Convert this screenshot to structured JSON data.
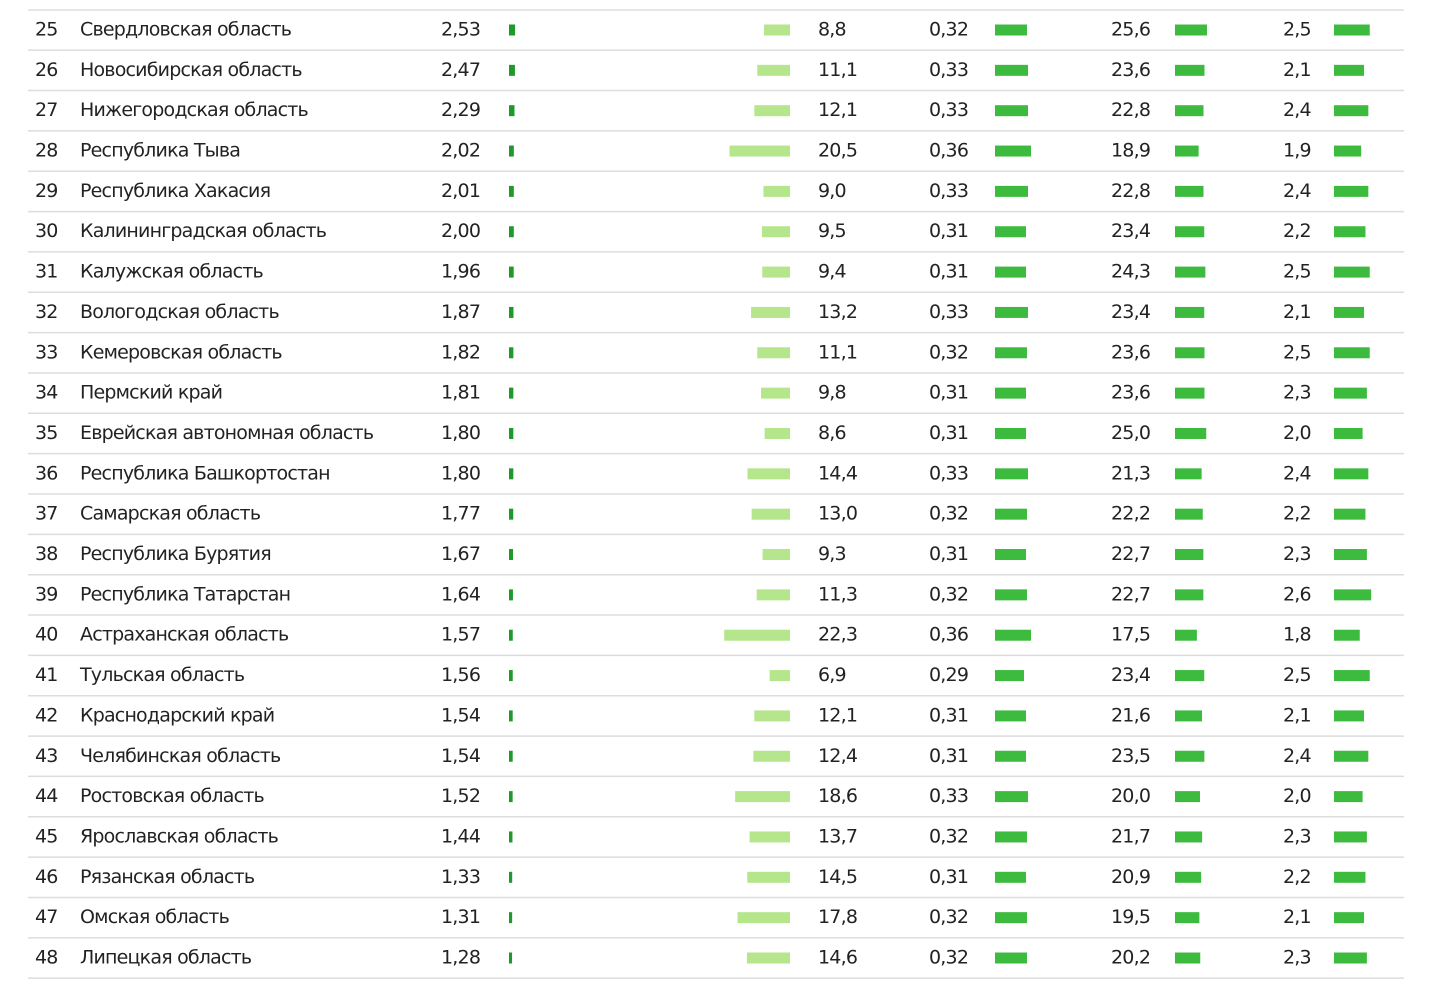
{
  "table": {
    "rows": [
      [
        "25",
        "Свердловская область",
        "2,53",
        "8,8",
        "0,32",
        "25,6",
        "2,5"
      ],
      [
        "26",
        "Новосибирская область",
        "2,47",
        "11,1",
        "0,33",
        "23,6",
        "2,1"
      ],
      [
        "27",
        "Нижегородская область",
        "2,29",
        "12,1",
        "0,33",
        "22,8",
        "2,4"
      ],
      [
        "28",
        "Республика Тыва",
        "2,02",
        "20,5",
        "0,36",
        "18,9",
        "1,9"
      ],
      [
        "29",
        "Республика Хакасия",
        "2,01",
        "9,0",
        "0,33",
        "22,8",
        "2,4"
      ],
      [
        "30",
        "Калининградская область",
        "2,00",
        "9,5",
        "0,31",
        "23,4",
        "2,2"
      ],
      [
        "31",
        "Калужская область",
        "1,96",
        "9,4",
        "0,31",
        "24,3",
        "2,5"
      ],
      [
        "32",
        "Вологодская область",
        "1,87",
        "13,2",
        "0,33",
        "23,4",
        "2,1"
      ],
      [
        "33",
        "Кемеровская область",
        "1,82",
        "11,1",
        "0,32",
        "23,6",
        "2,5"
      ],
      [
        "34",
        "Пермский край",
        "1,81",
        "9,8",
        "0,31",
        "23,6",
        "2,3"
      ],
      [
        "35",
        "Еврейская автономная область",
        "1,80",
        "8,6",
        "0,31",
        "25,0",
        "2,0"
      ],
      [
        "36",
        "Республика Башкортостан",
        "1,80",
        "14,4",
        "0,33",
        "21,3",
        "2,4"
      ],
      [
        "37",
        "Самарская область",
        "1,77",
        "13,0",
        "0,32",
        "22,2",
        "2,2"
      ],
      [
        "38",
        "Республика Бурятия",
        "1,67",
        "9,3",
        "0,31",
        "22,7",
        "2,3"
      ],
      [
        "39",
        "Республика Татарстан",
        "1,64",
        "11,3",
        "0,32",
        "22,7",
        "2,6"
      ],
      [
        "40",
        "Астраханская область",
        "1,57",
        "22,3",
        "0,36",
        "17,5",
        "1,8"
      ],
      [
        "41",
        "Тульская область",
        "1,56",
        "6,9",
        "0,29",
        "23,4",
        "2,5"
      ],
      [
        "42",
        "Краснодарский край",
        "1,54",
        "12,1",
        "0,31",
        "21,6",
        "2,1"
      ],
      [
        "43",
        "Челябинская область",
        "1,54",
        "12,4",
        "0,31",
        "23,5",
        "2,4"
      ],
      [
        "44",
        "Ростовская область",
        "1,52",
        "18,6",
        "0,33",
        "20,0",
        "2,0"
      ],
      [
        "45",
        "Ярославская область",
        "1,44",
        "13,7",
        "0,32",
        "21,7",
        "2,3"
      ],
      [
        "46",
        "Рязанская область",
        "1,33",
        "14,5",
        "0,31",
        "20,9",
        "2,2"
      ],
      [
        "47",
        "Омская область",
        "1,31",
        "17,8",
        "0,32",
        "19,5",
        "2,1"
      ],
      [
        "48",
        "Липецкая область",
        "1,28",
        "14,6",
        "0,32",
        "20,2",
        "2,3"
      ]
    ]
  }
}
